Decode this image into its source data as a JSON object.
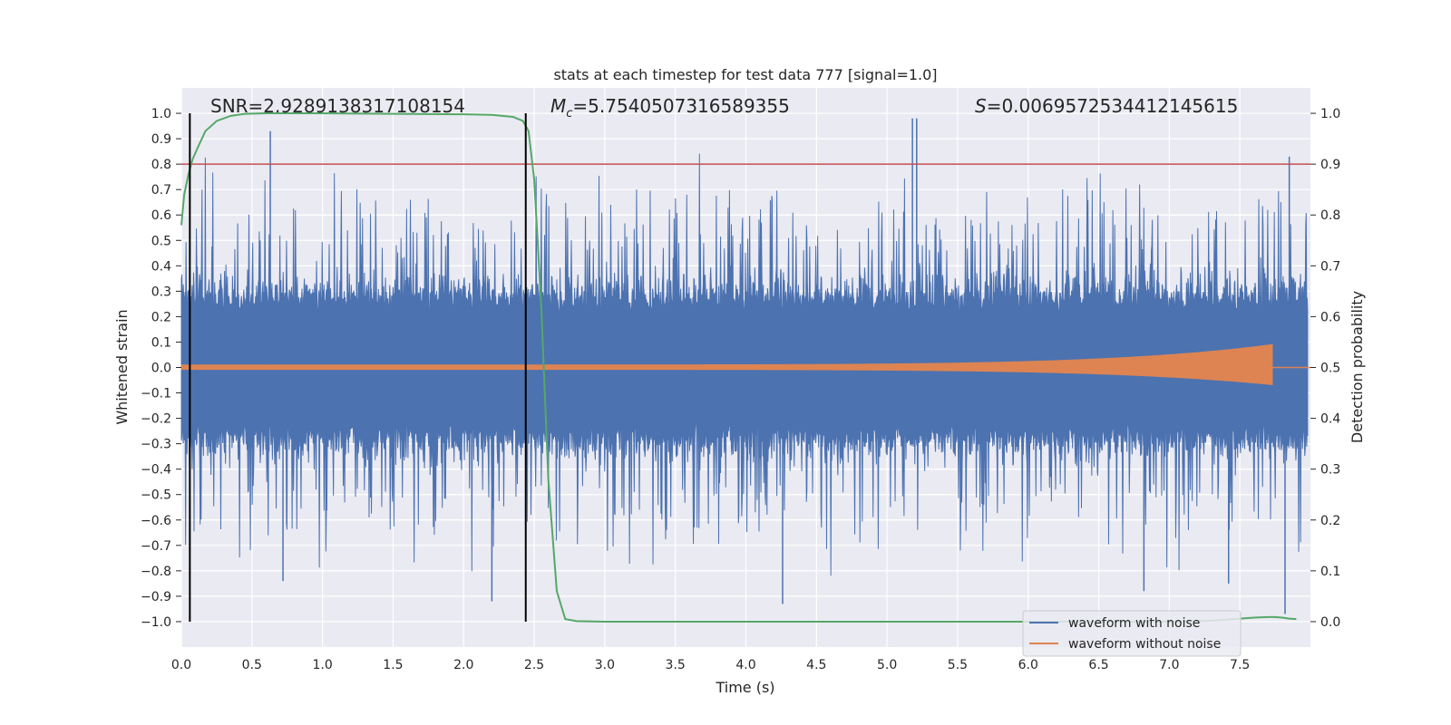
{
  "chart_data": {
    "type": "line",
    "title": "stats at each timestep for test data 777 [signal=1.0]",
    "xlabel": "Time (s)",
    "ylabel": "Whitened strain",
    "y2label": "Detection probability",
    "xlim": [
      0.0,
      8.0
    ],
    "ylim": [
      -1.1,
      1.1
    ],
    "y2lim": [
      -0.05,
      1.05
    ],
    "xticks": [
      "0.0",
      "0.5",
      "1.0",
      "1.5",
      "2.0",
      "2.5",
      "3.0",
      "3.5",
      "4.0",
      "4.5",
      "5.0",
      "5.5",
      "6.0",
      "6.5",
      "7.0",
      "7.5"
    ],
    "yticks": [
      "1.0",
      "0.9",
      "0.8",
      "0.7",
      "0.6",
      "0.5",
      "0.4",
      "0.3",
      "0.2",
      "0.1",
      "0.0",
      "−0.1",
      "−0.2",
      "−0.3",
      "−0.4",
      "−0.5",
      "−0.6",
      "−0.7",
      "−0.8",
      "−0.9",
      "−1.0"
    ],
    "y2ticks": [
      "1.0",
      "0.9",
      "0.8",
      "0.7",
      "0.6",
      "0.5",
      "0.4",
      "0.3",
      "0.2",
      "0.1",
      "0.0"
    ],
    "annotations": {
      "snr": "SNR=2.9289138317108154",
      "mc_symbol": "M",
      "mc_sub": "c",
      "mc_value": "=5.7540507316589355",
      "s_symbol": "S",
      "s_value": "=0.0069572534412145615"
    },
    "vertical_lines_x": [
      0.06,
      2.44
    ],
    "threshold_probability": 0.9,
    "series": [
      {
        "name": "waveform with noise",
        "color": "#4c72b0",
        "axis": "left",
        "peak_max": 0.93,
        "peak_min": -0.97,
        "typical_envelope": 0.4
      },
      {
        "name": "waveform without noise",
        "color": "#dd8452",
        "axis": "left",
        "start_amplitude": 0.01,
        "peak_amplitude": 0.09,
        "end_time": 7.73
      },
      {
        "name": "detection probability",
        "color": "#55a868",
        "axis": "right",
        "x": [
          0.0,
          0.02,
          0.05,
          0.08,
          0.12,
          0.17,
          0.25,
          0.35,
          0.45,
          0.6,
          1.0,
          1.5,
          2.0,
          2.2,
          2.35,
          2.42,
          2.46,
          2.5,
          2.55,
          2.6,
          2.66,
          2.72,
          2.8,
          3.0,
          4.0,
          5.0,
          6.0,
          7.0,
          7.3,
          7.5,
          7.6,
          7.7,
          7.75,
          7.8,
          7.85,
          7.9
        ],
        "y": [
          0.78,
          0.84,
          0.88,
          0.91,
          0.935,
          0.965,
          0.985,
          0.995,
          0.999,
          1.0,
          1.0,
          0.999,
          0.998,
          0.997,
          0.993,
          0.985,
          0.965,
          0.87,
          0.62,
          0.28,
          0.06,
          0.005,
          0.001,
          0.0,
          0.0,
          0.0,
          0.0,
          0.0,
          0.002,
          0.006,
          0.008,
          0.009,
          0.009,
          0.008,
          0.006,
          0.005
        ]
      }
    ],
    "legend": {
      "position": "lower-right",
      "entries": [
        "waveform with noise",
        "waveform without noise"
      ]
    },
    "grid": true
  },
  "colors": {
    "background": "#eaeaf2",
    "grid": "#ffffff",
    "noise": "#4c72b0",
    "clean": "#dd8452",
    "probability": "#55a868",
    "threshold": "#c44e52",
    "marker_line": "#000000"
  }
}
